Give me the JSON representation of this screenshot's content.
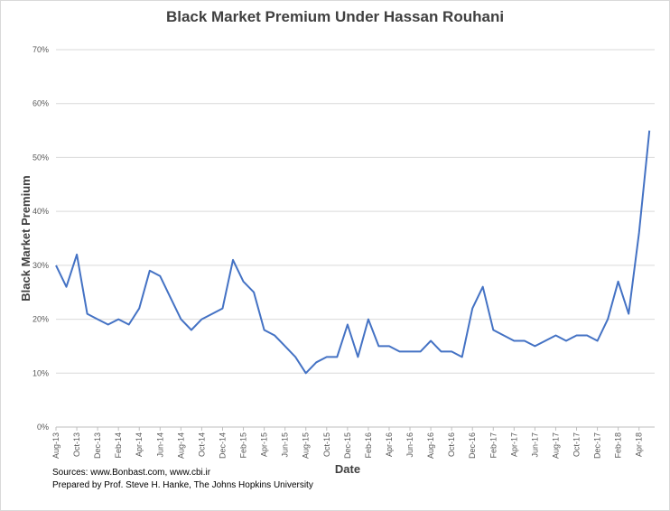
{
  "chart_data": {
    "type": "line",
    "title": "Black Market Premium Under Hassan Rouhani",
    "x_label": "Date",
    "y_label": "Black Market Premium",
    "notes": [
      "Sources: www.Bonbast.com, www.cbi.ir",
      "Prepared by Prof. Steve H. Hanke, The Johns Hopkins University"
    ],
    "x": [
      "2013-08",
      "2013-09",
      "2013-10",
      "2013-11",
      "2013-12",
      "2014-01",
      "2014-02",
      "2014-03",
      "2014-04",
      "2014-05",
      "2014-06",
      "2014-07",
      "2014-08",
      "2014-09",
      "2014-10",
      "2014-11",
      "2014-12",
      "2015-01",
      "2015-02",
      "2015-03",
      "2015-04",
      "2015-05",
      "2015-06",
      "2015-07",
      "2015-08",
      "2015-09",
      "2015-10",
      "2015-11",
      "2015-12",
      "2016-01",
      "2016-02",
      "2016-03",
      "2016-04",
      "2016-05",
      "2016-06",
      "2016-07",
      "2016-08",
      "2016-09",
      "2016-10",
      "2016-11",
      "2016-12",
      "2017-01",
      "2017-02",
      "2017-03",
      "2017-04",
      "2017-05",
      "2017-06",
      "2017-07",
      "2017-08",
      "2017-09",
      "2017-10",
      "2017-11",
      "2017-12",
      "2018-01",
      "2018-02",
      "2018-03",
      "2018-04",
      "2018-05"
    ],
    "series": [
      {
        "name": "Black Market Premium",
        "color": "#4472c4",
        "values": [
          30,
          26,
          32,
          21,
          20,
          19,
          20,
          19,
          22,
          29,
          28,
          24,
          20,
          18,
          20,
          21,
          22,
          31,
          27,
          25,
          18,
          17,
          15,
          13,
          10,
          12,
          13,
          13,
          19,
          13,
          20,
          15,
          15,
          14,
          14,
          14,
          16,
          14,
          14,
          13,
          22,
          26,
          18,
          17,
          16,
          16,
          15,
          16,
          17,
          16,
          17,
          17,
          16,
          20,
          27,
          21,
          36,
          55
        ]
      }
    ],
    "xlim": [
      "2013-08",
      "2018-05"
    ],
    "xticks": [
      {
        "value": "2013-08",
        "label": "Aug-13"
      },
      {
        "value": "2013-10",
        "label": "Oct-13"
      },
      {
        "value": "2013-12",
        "label": "Dec-13"
      },
      {
        "value": "2014-02",
        "label": "Feb-14"
      },
      {
        "value": "2014-04",
        "label": "Apr-14"
      },
      {
        "value": "2014-06",
        "label": "Jun-14"
      },
      {
        "value": "2014-08",
        "label": "Aug-14"
      },
      {
        "value": "2014-10",
        "label": "Oct-14"
      },
      {
        "value": "2014-12",
        "label": "Dec-14"
      },
      {
        "value": "2015-02",
        "label": "Feb-15"
      },
      {
        "value": "2015-04",
        "label": "Apr-15"
      },
      {
        "value": "2015-06",
        "label": "Jun-15"
      },
      {
        "value": "2015-08",
        "label": "Aug-15"
      },
      {
        "value": "2015-10",
        "label": "Oct-15"
      },
      {
        "value": "2015-12",
        "label": "Dec-15"
      },
      {
        "value": "2016-02",
        "label": "Feb-16"
      },
      {
        "value": "2016-04",
        "label": "Apr-16"
      },
      {
        "value": "2016-06",
        "label": "Jun-16"
      },
      {
        "value": "2016-08",
        "label": "Aug-16"
      },
      {
        "value": "2016-10",
        "label": "Oct-16"
      },
      {
        "value": "2016-12",
        "label": "Dec-16"
      },
      {
        "value": "2017-02",
        "label": "Feb-17"
      },
      {
        "value": "2017-04",
        "label": "Apr-17"
      },
      {
        "value": "2017-06",
        "label": "Jun-17"
      },
      {
        "value": "2017-08",
        "label": "Aug-17"
      },
      {
        "value": "2017-10",
        "label": "Oct-17"
      },
      {
        "value": "2017-12",
        "label": "Dec-17"
      },
      {
        "value": "2018-02",
        "label": "Feb-18"
      },
      {
        "value": "2018-04",
        "label": "Apr-18"
      }
    ],
    "ylim": [
      0,
      70
    ],
    "yticks": [
      {
        "value": 0,
        "label": "0%"
      },
      {
        "value": 10,
        "label": "10%"
      },
      {
        "value": 20,
        "label": "20%"
      },
      {
        "value": 30,
        "label": "30%"
      },
      {
        "value": 40,
        "label": "40%"
      },
      {
        "value": 50,
        "label": "50%"
      },
      {
        "value": 60,
        "label": "60%"
      },
      {
        "value": 70,
        "label": "70%"
      }
    ],
    "grid": true
  }
}
